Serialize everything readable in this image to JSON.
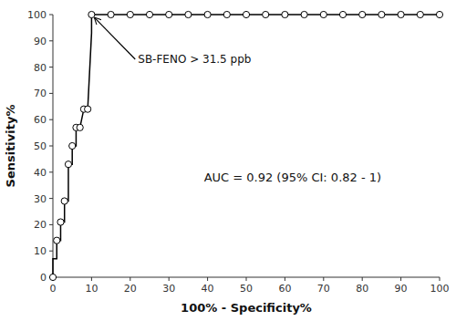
{
  "chart_data": {
    "type": "line",
    "xlabel": "100% - Specificity%",
    "ylabel": "Sensitivity%",
    "xlim": [
      0,
      100
    ],
    "ylim": [
      0,
      100
    ],
    "xticks": [
      0,
      10,
      20,
      30,
      40,
      50,
      60,
      70,
      80,
      90,
      100
    ],
    "yticks": [
      0,
      10,
      20,
      30,
      40,
      50,
      60,
      70,
      80,
      90,
      100
    ],
    "grid": false,
    "background_color": "#ffffff",
    "series": [
      {
        "type": "line",
        "color": "#000000",
        "x": [
          0,
          0,
          1,
          1,
          2,
          2,
          3,
          3,
          4,
          4,
          5,
          5,
          6,
          6,
          7,
          8,
          9,
          10,
          10,
          15,
          20,
          25,
          30,
          35,
          40,
          45,
          50,
          55,
          60,
          65,
          70,
          75,
          80,
          85,
          90,
          95,
          100
        ],
        "values": [
          0,
          7,
          7,
          14,
          14,
          21,
          21,
          29,
          29,
          43,
          43,
          50,
          50,
          57,
          57,
          64,
          64,
          93,
          100,
          100,
          100,
          100,
          100,
          100,
          100,
          100,
          100,
          100,
          100,
          100,
          100,
          100,
          100,
          100,
          100,
          100,
          100
        ]
      },
      {
        "type": "scatter",
        "marker": "circle",
        "color": "#ffffff",
        "x": [
          0,
          1,
          2,
          3,
          4,
          5,
          6,
          7,
          8,
          9,
          10,
          15,
          20,
          25,
          30,
          35,
          40,
          45,
          50,
          55,
          60,
          65,
          70,
          75,
          80,
          85,
          90,
          95,
          100
        ],
        "values": [
          0,
          14,
          21,
          29,
          43,
          50,
          57,
          57,
          64,
          64,
          100,
          100,
          100,
          100,
          100,
          100,
          100,
          100,
          100,
          100,
          100,
          100,
          100,
          100,
          100,
          100,
          100,
          100,
          100
        ]
      }
    ],
    "annotations": [
      {
        "text": "SB-FENO > 31.5 ppb",
        "xy": [
          10,
          100
        ],
        "xytext": [
          22,
          83
        ],
        "arrow": true
      },
      {
        "text": "AUC = 0.92 (95% CI: 0.82 - 1)",
        "xy": [
          62,
          38
        ]
      }
    ]
  }
}
